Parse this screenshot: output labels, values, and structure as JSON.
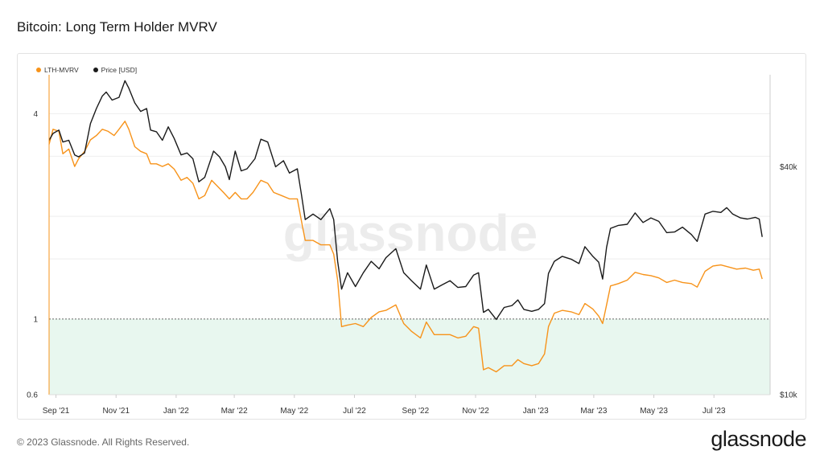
{
  "header": {
    "title": "Bitcoin: Long Term Holder MVRV"
  },
  "footer": {
    "copyright": "© 2023 Glassnode. All Rights Reserved.",
    "logo": "glassnode"
  },
  "watermark": "glassnode",
  "colors": {
    "lth_mvrv": "#f7931a",
    "price": "#1a1a1a",
    "zone_fill": "#e8f7ef",
    "threshold_line": "#666666"
  },
  "chart_data": {
    "type": "line",
    "title": "Bitcoin: Long Term Holder MVRV",
    "legend": [
      {
        "name": "LTH-MVRV",
        "color": "#f7931a"
      },
      {
        "name": "Price [USD]",
        "color": "#1a1a1a"
      }
    ],
    "legend_placement": "top-left",
    "x_ticks": [
      "Sep '21",
      "Nov '21",
      "Jan '22",
      "Mar '22",
      "May '22",
      "Jul '22",
      "Sep '22",
      "Nov '22",
      "Jan '23",
      "Mar '23",
      "May '23",
      "Jul '23"
    ],
    "y_left": {
      "scale": "log",
      "ticks": [
        {
          "value": 0.6,
          "label": "0.6"
        },
        {
          "value": 1,
          "label": "1"
        },
        {
          "value": 4,
          "label": "4"
        }
      ],
      "range": [
        0.6,
        5.2
      ]
    },
    "y_right": {
      "scale": "log",
      "ticks": [
        {
          "value": 10000,
          "label": "$10k"
        },
        {
          "value": 40000,
          "label": "$40k"
        }
      ],
      "range": [
        10000,
        70000
      ]
    },
    "threshold": 1,
    "x_range": [
      "2021-08-25",
      "2023-08-27"
    ],
    "series": [
      {
        "name": "LTH-MVRV",
        "axis": "left",
        "points": [
          [
            "2021-08-25",
            3.25
          ],
          [
            "2021-08-29",
            3.6
          ],
          [
            "2021-09-04",
            3.55
          ],
          [
            "2021-09-08",
            3.05
          ],
          [
            "2021-09-14",
            3.15
          ],
          [
            "2021-09-20",
            2.8
          ],
          [
            "2021-09-24",
            2.95
          ],
          [
            "2021-09-30",
            3.1
          ],
          [
            "2021-10-06",
            3.35
          ],
          [
            "2021-10-12",
            3.45
          ],
          [
            "2021-10-18",
            3.6
          ],
          [
            "2021-10-24",
            3.55
          ],
          [
            "2021-10-30",
            3.45
          ],
          [
            "2021-11-04",
            3.6
          ],
          [
            "2021-11-10",
            3.8
          ],
          [
            "2021-11-14",
            3.6
          ],
          [
            "2021-11-20",
            3.2
          ],
          [
            "2021-11-26",
            3.1
          ],
          [
            "2021-12-02",
            3.05
          ],
          [
            "2021-12-06",
            2.85
          ],
          [
            "2021-12-12",
            2.85
          ],
          [
            "2021-12-18",
            2.8
          ],
          [
            "2021-12-24",
            2.85
          ],
          [
            "2021-12-30",
            2.75
          ],
          [
            "2022-01-06",
            2.55
          ],
          [
            "2022-01-12",
            2.6
          ],
          [
            "2022-01-18",
            2.5
          ],
          [
            "2022-01-24",
            2.25
          ],
          [
            "2022-01-30",
            2.3
          ],
          [
            "2022-02-06",
            2.55
          ],
          [
            "2022-02-12",
            2.45
          ],
          [
            "2022-02-18",
            2.35
          ],
          [
            "2022-02-24",
            2.25
          ],
          [
            "2022-03-02",
            2.35
          ],
          [
            "2022-03-08",
            2.25
          ],
          [
            "2022-03-14",
            2.25
          ],
          [
            "2022-03-20",
            2.35
          ],
          [
            "2022-03-28",
            2.55
          ],
          [
            "2022-04-04",
            2.5
          ],
          [
            "2022-04-10",
            2.35
          ],
          [
            "2022-04-18",
            2.3
          ],
          [
            "2022-04-26",
            2.25
          ],
          [
            "2022-05-04",
            2.25
          ],
          [
            "2022-05-08",
            1.95
          ],
          [
            "2022-05-12",
            1.7
          ],
          [
            "2022-05-20",
            1.7
          ],
          [
            "2022-05-28",
            1.65
          ],
          [
            "2022-06-06",
            1.65
          ],
          [
            "2022-06-10",
            1.55
          ],
          [
            "2022-06-14",
            1.3
          ],
          [
            "2022-06-18",
            0.95
          ],
          [
            "2022-06-24",
            0.96
          ],
          [
            "2022-07-02",
            0.97
          ],
          [
            "2022-07-10",
            0.95
          ],
          [
            "2022-07-18",
            1.01
          ],
          [
            "2022-07-26",
            1.05
          ],
          [
            "2022-08-02",
            1.06
          ],
          [
            "2022-08-12",
            1.1
          ],
          [
            "2022-08-20",
            0.97
          ],
          [
            "2022-08-28",
            0.92
          ],
          [
            "2022-09-06",
            0.88
          ],
          [
            "2022-09-12",
            0.98
          ],
          [
            "2022-09-20",
            0.9
          ],
          [
            "2022-09-28",
            0.9
          ],
          [
            "2022-10-06",
            0.9
          ],
          [
            "2022-10-14",
            0.88
          ],
          [
            "2022-10-22",
            0.89
          ],
          [
            "2022-10-30",
            0.95
          ],
          [
            "2022-11-04",
            0.94
          ],
          [
            "2022-11-09",
            0.71
          ],
          [
            "2022-11-14",
            0.72
          ],
          [
            "2022-11-22",
            0.7
          ],
          [
            "2022-11-30",
            0.73
          ],
          [
            "2022-12-08",
            0.73
          ],
          [
            "2022-12-14",
            0.76
          ],
          [
            "2022-12-20",
            0.74
          ],
          [
            "2022-12-28",
            0.73
          ],
          [
            "2023-01-04",
            0.74
          ],
          [
            "2023-01-10",
            0.79
          ],
          [
            "2023-01-14",
            0.95
          ],
          [
            "2023-01-20",
            1.04
          ],
          [
            "2023-01-28",
            1.06
          ],
          [
            "2023-02-06",
            1.05
          ],
          [
            "2023-02-14",
            1.03
          ],
          [
            "2023-02-20",
            1.11
          ],
          [
            "2023-02-28",
            1.07
          ],
          [
            "2023-03-06",
            1.02
          ],
          [
            "2023-03-10",
            0.97
          ],
          [
            "2023-03-14",
            1.1
          ],
          [
            "2023-03-18",
            1.25
          ],
          [
            "2023-03-26",
            1.27
          ],
          [
            "2023-04-04",
            1.3
          ],
          [
            "2023-04-12",
            1.37
          ],
          [
            "2023-04-20",
            1.35
          ],
          [
            "2023-04-28",
            1.34
          ],
          [
            "2023-05-06",
            1.32
          ],
          [
            "2023-05-14",
            1.28
          ],
          [
            "2023-05-22",
            1.3
          ],
          [
            "2023-05-30",
            1.28
          ],
          [
            "2023-06-08",
            1.27
          ],
          [
            "2023-06-14",
            1.24
          ],
          [
            "2023-06-22",
            1.38
          ],
          [
            "2023-06-30",
            1.43
          ],
          [
            "2023-07-08",
            1.44
          ],
          [
            "2023-07-16",
            1.42
          ],
          [
            "2023-07-24",
            1.4
          ],
          [
            "2023-08-02",
            1.41
          ],
          [
            "2023-08-10",
            1.39
          ],
          [
            "2023-08-16",
            1.4
          ],
          [
            "2023-08-19",
            1.31
          ]
        ]
      },
      {
        "name": "Price [USD]",
        "axis": "right",
        "points": [
          [
            "2021-08-25",
            47000
          ],
          [
            "2021-08-29",
            49000
          ],
          [
            "2021-09-04",
            50000
          ],
          [
            "2021-09-08",
            46500
          ],
          [
            "2021-09-14",
            47000
          ],
          [
            "2021-09-20",
            43000
          ],
          [
            "2021-09-24",
            42500
          ],
          [
            "2021-09-30",
            43500
          ],
          [
            "2021-10-06",
            52000
          ],
          [
            "2021-10-12",
            57000
          ],
          [
            "2021-10-18",
            61500
          ],
          [
            "2021-10-22",
            63000
          ],
          [
            "2021-10-28",
            60000
          ],
          [
            "2021-11-04",
            61000
          ],
          [
            "2021-11-10",
            67500
          ],
          [
            "2021-11-14",
            64500
          ],
          [
            "2021-11-20",
            59000
          ],
          [
            "2021-11-26",
            56000
          ],
          [
            "2021-12-02",
            57000
          ],
          [
            "2021-12-06",
            50000
          ],
          [
            "2021-12-12",
            49500
          ],
          [
            "2021-12-18",
            47000
          ],
          [
            "2021-12-24",
            51000
          ],
          [
            "2021-12-30",
            47500
          ],
          [
            "2022-01-06",
            43000
          ],
          [
            "2022-01-12",
            43500
          ],
          [
            "2022-01-18",
            42000
          ],
          [
            "2022-01-24",
            36500
          ],
          [
            "2022-01-30",
            37500
          ],
          [
            "2022-02-08",
            44000
          ],
          [
            "2022-02-14",
            42500
          ],
          [
            "2022-02-20",
            40000
          ],
          [
            "2022-02-24",
            37000
          ],
          [
            "2022-03-02",
            44000
          ],
          [
            "2022-03-08",
            39000
          ],
          [
            "2022-03-14",
            39500
          ],
          [
            "2022-03-22",
            42000
          ],
          [
            "2022-03-28",
            47300
          ],
          [
            "2022-04-04",
            46500
          ],
          [
            "2022-04-12",
            40000
          ],
          [
            "2022-04-20",
            41500
          ],
          [
            "2022-04-26",
            38500
          ],
          [
            "2022-05-04",
            39500
          ],
          [
            "2022-05-08",
            34000
          ],
          [
            "2022-05-12",
            29000
          ],
          [
            "2022-05-20",
            30000
          ],
          [
            "2022-05-28",
            29000
          ],
          [
            "2022-06-06",
            31000
          ],
          [
            "2022-06-10",
            29000
          ],
          [
            "2022-06-14",
            22500
          ],
          [
            "2022-06-18",
            19000
          ],
          [
            "2022-06-24",
            21000
          ],
          [
            "2022-07-02",
            19300
          ],
          [
            "2022-07-10",
            21000
          ],
          [
            "2022-07-18",
            22500
          ],
          [
            "2022-07-26",
            21500
          ],
          [
            "2022-08-02",
            23000
          ],
          [
            "2022-08-12",
            24300
          ],
          [
            "2022-08-20",
            21000
          ],
          [
            "2022-08-28",
            20000
          ],
          [
            "2022-09-06",
            19000
          ],
          [
            "2022-09-12",
            22000
          ],
          [
            "2022-09-20",
            19000
          ],
          [
            "2022-09-28",
            19500
          ],
          [
            "2022-10-06",
            20000
          ],
          [
            "2022-10-14",
            19200
          ],
          [
            "2022-10-22",
            19300
          ],
          [
            "2022-10-30",
            20700
          ],
          [
            "2022-11-04",
            21000
          ],
          [
            "2022-11-09",
            16500
          ],
          [
            "2022-11-14",
            16800
          ],
          [
            "2022-11-22",
            15800
          ],
          [
            "2022-11-30",
            17000
          ],
          [
            "2022-12-08",
            17200
          ],
          [
            "2022-12-14",
            17800
          ],
          [
            "2022-12-20",
            16800
          ],
          [
            "2022-12-28",
            16600
          ],
          [
            "2023-01-04",
            16800
          ],
          [
            "2023-01-10",
            17400
          ],
          [
            "2023-01-14",
            20900
          ],
          [
            "2023-01-20",
            22500
          ],
          [
            "2023-01-28",
            23200
          ],
          [
            "2023-02-06",
            22800
          ],
          [
            "2023-02-14",
            22200
          ],
          [
            "2023-02-20",
            24600
          ],
          [
            "2023-02-28",
            23200
          ],
          [
            "2023-03-06",
            22400
          ],
          [
            "2023-03-10",
            20200
          ],
          [
            "2023-03-14",
            24500
          ],
          [
            "2023-03-18",
            27500
          ],
          [
            "2023-03-26",
            28000
          ],
          [
            "2023-04-04",
            28200
          ],
          [
            "2023-04-12",
            30200
          ],
          [
            "2023-04-20",
            28500
          ],
          [
            "2023-04-28",
            29300
          ],
          [
            "2023-05-06",
            28700
          ],
          [
            "2023-05-14",
            26800
          ],
          [
            "2023-05-22",
            26900
          ],
          [
            "2023-05-30",
            27700
          ],
          [
            "2023-06-08",
            26500
          ],
          [
            "2023-06-14",
            25400
          ],
          [
            "2023-06-22",
            30000
          ],
          [
            "2023-06-30",
            30500
          ],
          [
            "2023-07-08",
            30300
          ],
          [
            "2023-07-14",
            31200
          ],
          [
            "2023-07-20",
            30000
          ],
          [
            "2023-07-28",
            29300
          ],
          [
            "2023-08-04",
            29100
          ],
          [
            "2023-08-12",
            29400
          ],
          [
            "2023-08-16",
            29100
          ],
          [
            "2023-08-19",
            26100
          ]
        ]
      }
    ]
  }
}
